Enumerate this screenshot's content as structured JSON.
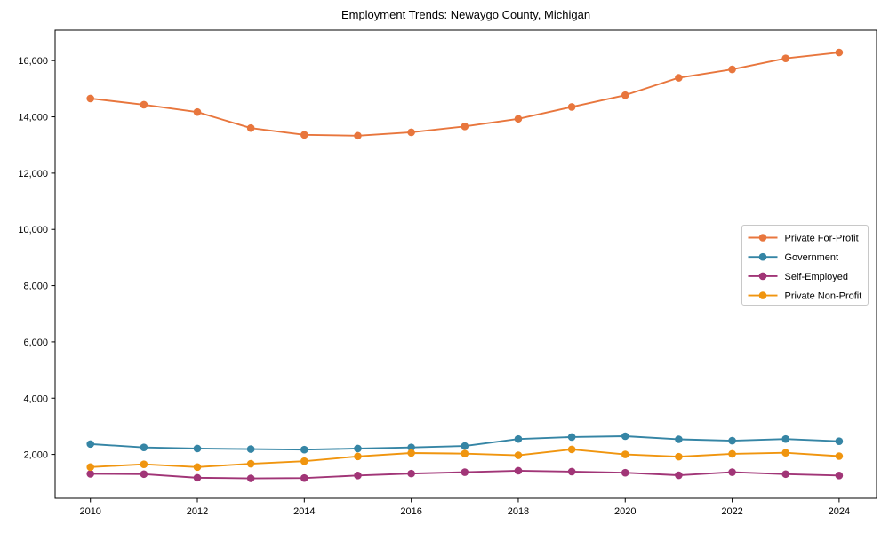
{
  "chart_data": {
    "type": "line",
    "title": "Employment Trends: Newaygo County, Michigan",
    "xlabel": "",
    "ylabel": "",
    "x": [
      2010,
      2011,
      2012,
      2013,
      2014,
      2015,
      2016,
      2017,
      2018,
      2019,
      2020,
      2021,
      2022,
      2023,
      2024
    ],
    "series": [
      {
        "name": "Private For-Profit",
        "color": "#e8763d",
        "values": [
          14650,
          14430,
          14170,
          13600,
          13360,
          13330,
          13450,
          13660,
          13930,
          14350,
          14770,
          15390,
          15690,
          16080,
          16290
        ]
      },
      {
        "name": "Government",
        "color": "#3585a5",
        "values": [
          2370,
          2250,
          2210,
          2190,
          2170,
          2210,
          2250,
          2300,
          2550,
          2620,
          2650,
          2540,
          2490,
          2550,
          2470
        ]
      },
      {
        "name": "Self-Employed",
        "color": "#a13577",
        "values": [
          1310,
          1300,
          1170,
          1150,
          1160,
          1250,
          1320,
          1370,
          1420,
          1390,
          1350,
          1260,
          1370,
          1300,
          1250
        ]
      },
      {
        "name": "Private Non-Profit",
        "color": "#f0950f",
        "values": [
          1550,
          1650,
          1550,
          1670,
          1760,
          1930,
          2050,
          2030,
          1970,
          2180,
          2000,
          1920,
          2020,
          2060,
          1940
        ]
      }
    ],
    "xticks": [
      2010,
      2012,
      2014,
      2016,
      2018,
      2020,
      2022,
      2024
    ],
    "xtick_labels": [
      "2010",
      "2012",
      "2014",
      "2016",
      "2018",
      "2020",
      "2022",
      "2024"
    ],
    "yticks": [
      2000,
      4000,
      6000,
      8000,
      10000,
      12000,
      14000,
      16000
    ],
    "ytick_labels": [
      "2,000",
      "4,000",
      "6,000",
      "8,000",
      "10,000",
      "12,000",
      "14,000",
      "16,000"
    ],
    "xlim": [
      2009.34,
      2024.7
    ],
    "ylim": [
      440,
      17080
    ],
    "grid": false,
    "legend": {
      "position": "center-right",
      "labels": [
        "Private For-Profit",
        "Government",
        "Self-Employed",
        "Private Non-Profit"
      ]
    },
    "style": {
      "axis_color": "#000000",
      "legend_border_color": "#c8c8c8",
      "background": "#ffffff",
      "line_width": 1.9,
      "marker_radius": 4.3
    }
  }
}
